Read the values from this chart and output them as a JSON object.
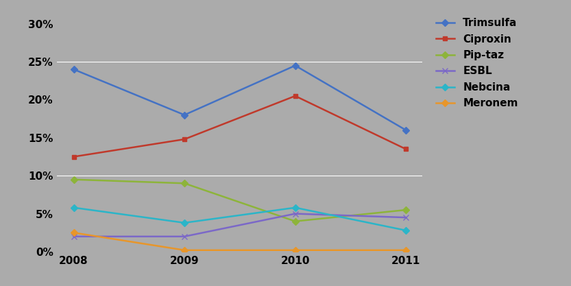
{
  "years": [
    2008,
    2009,
    2010,
    2011
  ],
  "series": [
    {
      "name": "Trimsulfa",
      "values": [
        0.24,
        0.18,
        0.245,
        0.16
      ],
      "color": "#4472C4",
      "marker": "D",
      "markersize": 5
    },
    {
      "name": "Ciproxin",
      "values": [
        0.125,
        0.148,
        0.205,
        0.135
      ],
      "color": "#C0392B",
      "marker": "s",
      "markersize": 5
    },
    {
      "name": "Pip-taz",
      "values": [
        0.095,
        0.09,
        0.04,
        0.055
      ],
      "color": "#8DB43A",
      "marker": "D",
      "markersize": 5
    },
    {
      "name": "ESBL",
      "values": [
        0.02,
        0.02,
        0.05,
        0.045
      ],
      "color": "#7B68C8",
      "marker": "x",
      "markersize": 6
    },
    {
      "name": "Nebcina",
      "values": [
        0.058,
        0.038,
        0.058,
        0.028
      ],
      "color": "#2BB5C8",
      "marker": "D",
      "markersize": 5
    },
    {
      "name": "Meronem",
      "values": [
        0.025,
        0.002,
        0.002,
        0.002
      ],
      "color": "#E8962A",
      "marker": "D",
      "markersize": 5
    }
  ],
  "ylim": [
    0.0,
    0.32
  ],
  "yticks": [
    0.0,
    0.05,
    0.1,
    0.15,
    0.2,
    0.25,
    0.3
  ],
  "ytick_labels": [
    "0%",
    "5%",
    "10%",
    "15%",
    "20%",
    "25%",
    "30%"
  ],
  "background_color": "#ABABAB",
  "plot_area_color": "#ABABAB",
  "grid_color": "#FFFFFF",
  "grid_lines": [
    0.1,
    0.25
  ],
  "legend_fontsize": 11,
  "tick_fontsize": 11,
  "linewidth": 1.8,
  "figsize": [
    8.33,
    4.17
  ],
  "dpi": 100
}
